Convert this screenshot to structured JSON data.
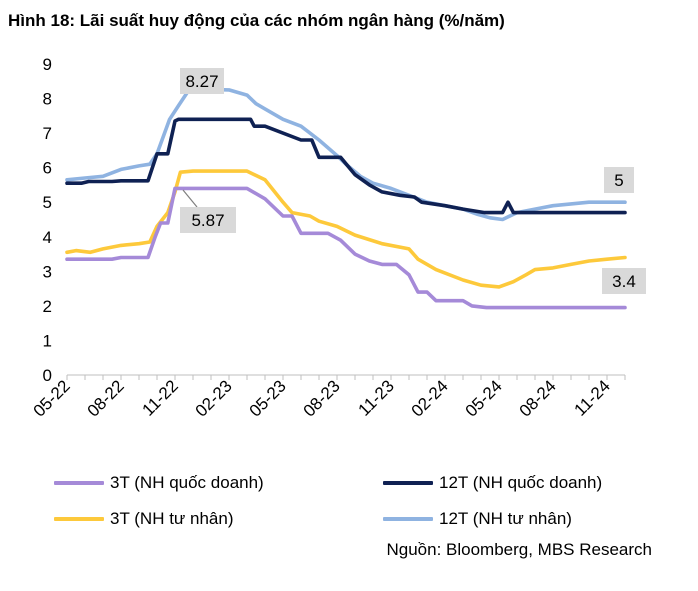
{
  "title": "Hình 18: Lãi suất huy động của các nhóm ngân hàng (%/năm)",
  "source": "Nguồn: Bloomberg, MBS Research",
  "colors": {
    "gov3": "#a58ad8",
    "gov12": "#0f2153",
    "priv3": "#fdc93b",
    "priv12": "#8fb3e1",
    "callout_bg": "#d9d9d9"
  },
  "chart_data": {
    "type": "line",
    "title": "Hình 18: Lãi suất huy động của các nhóm ngân hàng (%/năm)",
    "xlabel": "",
    "ylabel": "",
    "ylim": [
      0,
      9
    ],
    "yticks": [
      "0",
      "1",
      "2",
      "3",
      "4",
      "5",
      "6",
      "7",
      "8",
      "9"
    ],
    "x_range": [
      0,
      31
    ],
    "xticks": [
      {
        "pos": 0,
        "label": "05-22"
      },
      {
        "pos": 3,
        "label": "08-22"
      },
      {
        "pos": 6,
        "label": "11-22"
      },
      {
        "pos": 9,
        "label": "02-23"
      },
      {
        "pos": 12,
        "label": "05-23"
      },
      {
        "pos": 15,
        "label": "08-23"
      },
      {
        "pos": 18,
        "label": "11-23"
      },
      {
        "pos": 21,
        "label": "02-24"
      },
      {
        "pos": 24,
        "label": "05-24"
      },
      {
        "pos": 27,
        "label": "08-24"
      },
      {
        "pos": 30,
        "label": "11-24"
      }
    ],
    "series": [
      {
        "name": "3T (NH quốc doanh)",
        "color_key": "gov3",
        "points": [
          [
            0,
            3.35
          ],
          [
            1.5,
            3.35
          ],
          [
            2.5,
            3.35
          ],
          [
            3,
            3.4
          ],
          [
            4.5,
            3.4
          ],
          [
            4.9,
            4.0
          ],
          [
            5.2,
            4.4
          ],
          [
            5.6,
            4.4
          ],
          [
            6.0,
            5.4
          ],
          [
            6.2,
            5.4
          ],
          [
            8,
            5.4
          ],
          [
            10,
            5.4
          ],
          [
            11,
            5.1
          ],
          [
            12,
            4.6
          ],
          [
            12.5,
            4.6
          ],
          [
            13.0,
            4.1
          ],
          [
            14.5,
            4.1
          ],
          [
            15.2,
            3.9
          ],
          [
            16,
            3.5
          ],
          [
            16.8,
            3.3
          ],
          [
            17.5,
            3.2
          ],
          [
            18.3,
            3.2
          ],
          [
            19,
            2.9
          ],
          [
            19.5,
            2.4
          ],
          [
            20,
            2.4
          ],
          [
            20.5,
            2.15
          ],
          [
            22,
            2.15
          ],
          [
            22.5,
            2.0
          ],
          [
            23.3,
            1.95
          ],
          [
            31,
            1.95
          ]
        ]
      },
      {
        "name": "12T (NH quốc doanh)",
        "color_key": "gov12",
        "points": [
          [
            0,
            5.55
          ],
          [
            0.8,
            5.55
          ],
          [
            1.2,
            5.6
          ],
          [
            2.5,
            5.6
          ],
          [
            3,
            5.62
          ],
          [
            4.5,
            5.62
          ],
          [
            5.0,
            6.4
          ],
          [
            5.6,
            6.4
          ],
          [
            6.0,
            7.35
          ],
          [
            6.2,
            7.4
          ],
          [
            10.2,
            7.4
          ],
          [
            10.4,
            7.2
          ],
          [
            11,
            7.2
          ],
          [
            13,
            6.8
          ],
          [
            13.6,
            6.8
          ],
          [
            14.0,
            6.3
          ],
          [
            15.2,
            6.3
          ],
          [
            16,
            5.8
          ],
          [
            16.8,
            5.5
          ],
          [
            17.5,
            5.3
          ],
          [
            18.5,
            5.2
          ],
          [
            19.3,
            5.15
          ],
          [
            19.7,
            5.0
          ],
          [
            21,
            4.9
          ],
          [
            22,
            4.8
          ],
          [
            23.2,
            4.7
          ],
          [
            24.2,
            4.7
          ],
          [
            24.5,
            5.0
          ],
          [
            24.8,
            4.7
          ],
          [
            31,
            4.7
          ]
        ]
      },
      {
        "name": "3T (NH tư nhân)",
        "color_key": "priv3",
        "points": [
          [
            0,
            3.55
          ],
          [
            0.5,
            3.6
          ],
          [
            1.3,
            3.55
          ],
          [
            2,
            3.65
          ],
          [
            3,
            3.75
          ],
          [
            4,
            3.8
          ],
          [
            4.6,
            3.85
          ],
          [
            5.0,
            4.3
          ],
          [
            5.6,
            4.7
          ],
          [
            6.0,
            5.3
          ],
          [
            6.3,
            5.87
          ],
          [
            7,
            5.9
          ],
          [
            8.5,
            5.9
          ],
          [
            10,
            5.9
          ],
          [
            11,
            5.65
          ],
          [
            12,
            5.0
          ],
          [
            12.5,
            4.7
          ],
          [
            13.5,
            4.6
          ],
          [
            14,
            4.45
          ],
          [
            15,
            4.3
          ],
          [
            16,
            4.05
          ],
          [
            17.5,
            3.8
          ],
          [
            19,
            3.65
          ],
          [
            19.5,
            3.35
          ],
          [
            20.5,
            3.05
          ],
          [
            22,
            2.75
          ],
          [
            23,
            2.6
          ],
          [
            24,
            2.55
          ],
          [
            24.8,
            2.7
          ],
          [
            25.5,
            2.9
          ],
          [
            26,
            3.05
          ],
          [
            27,
            3.1
          ],
          [
            28,
            3.2
          ],
          [
            29,
            3.3
          ],
          [
            30,
            3.35
          ],
          [
            31,
            3.4
          ]
        ]
      },
      {
        "name": "12T (NH tư nhân)",
        "color_key": "priv12",
        "points": [
          [
            0,
            5.65
          ],
          [
            1,
            5.7
          ],
          [
            2,
            5.75
          ],
          [
            3,
            5.95
          ],
          [
            4,
            6.05
          ],
          [
            4.6,
            6.1
          ],
          [
            5.0,
            6.4
          ],
          [
            5.7,
            7.4
          ],
          [
            6.2,
            7.8
          ],
          [
            6.8,
            8.27
          ],
          [
            7.5,
            8.27
          ],
          [
            9,
            8.25
          ],
          [
            10,
            8.1
          ],
          [
            10.5,
            7.85
          ],
          [
            11,
            7.7
          ],
          [
            12,
            7.4
          ],
          [
            13,
            7.2
          ],
          [
            14,
            6.8
          ],
          [
            15,
            6.35
          ],
          [
            15.5,
            6.1
          ],
          [
            16.3,
            5.75
          ],
          [
            17,
            5.55
          ],
          [
            18,
            5.4
          ],
          [
            19,
            5.2
          ],
          [
            20,
            5.0
          ],
          [
            21,
            4.9
          ],
          [
            22,
            4.8
          ],
          [
            22.8,
            4.65
          ],
          [
            23.5,
            4.55
          ],
          [
            24.2,
            4.5
          ],
          [
            25,
            4.7
          ],
          [
            26,
            4.8
          ],
          [
            27,
            4.9
          ],
          [
            28,
            4.95
          ],
          [
            29,
            5.0
          ],
          [
            30,
            5.0
          ],
          [
            31,
            5.0
          ]
        ]
      }
    ],
    "annotations": [
      {
        "text": "8.27",
        "series": "12T (NH tư nhân)"
      },
      {
        "text": "5.87",
        "series": "3T (NH tư nhân)"
      },
      {
        "text": "5",
        "series": "12T (NH tư nhân)"
      },
      {
        "text": "3.4",
        "series": "3T (NH tư nhân)"
      }
    ]
  },
  "legend": [
    {
      "label": "3T (NH quốc doanh)",
      "color_key": "gov3"
    },
    {
      "label": "12T (NH quốc doanh)",
      "color_key": "gov12"
    },
    {
      "label": "3T (NH tư nhân)",
      "color_key": "priv3"
    },
    {
      "label": "12T (NH tư nhân)",
      "color_key": "priv12"
    }
  ]
}
